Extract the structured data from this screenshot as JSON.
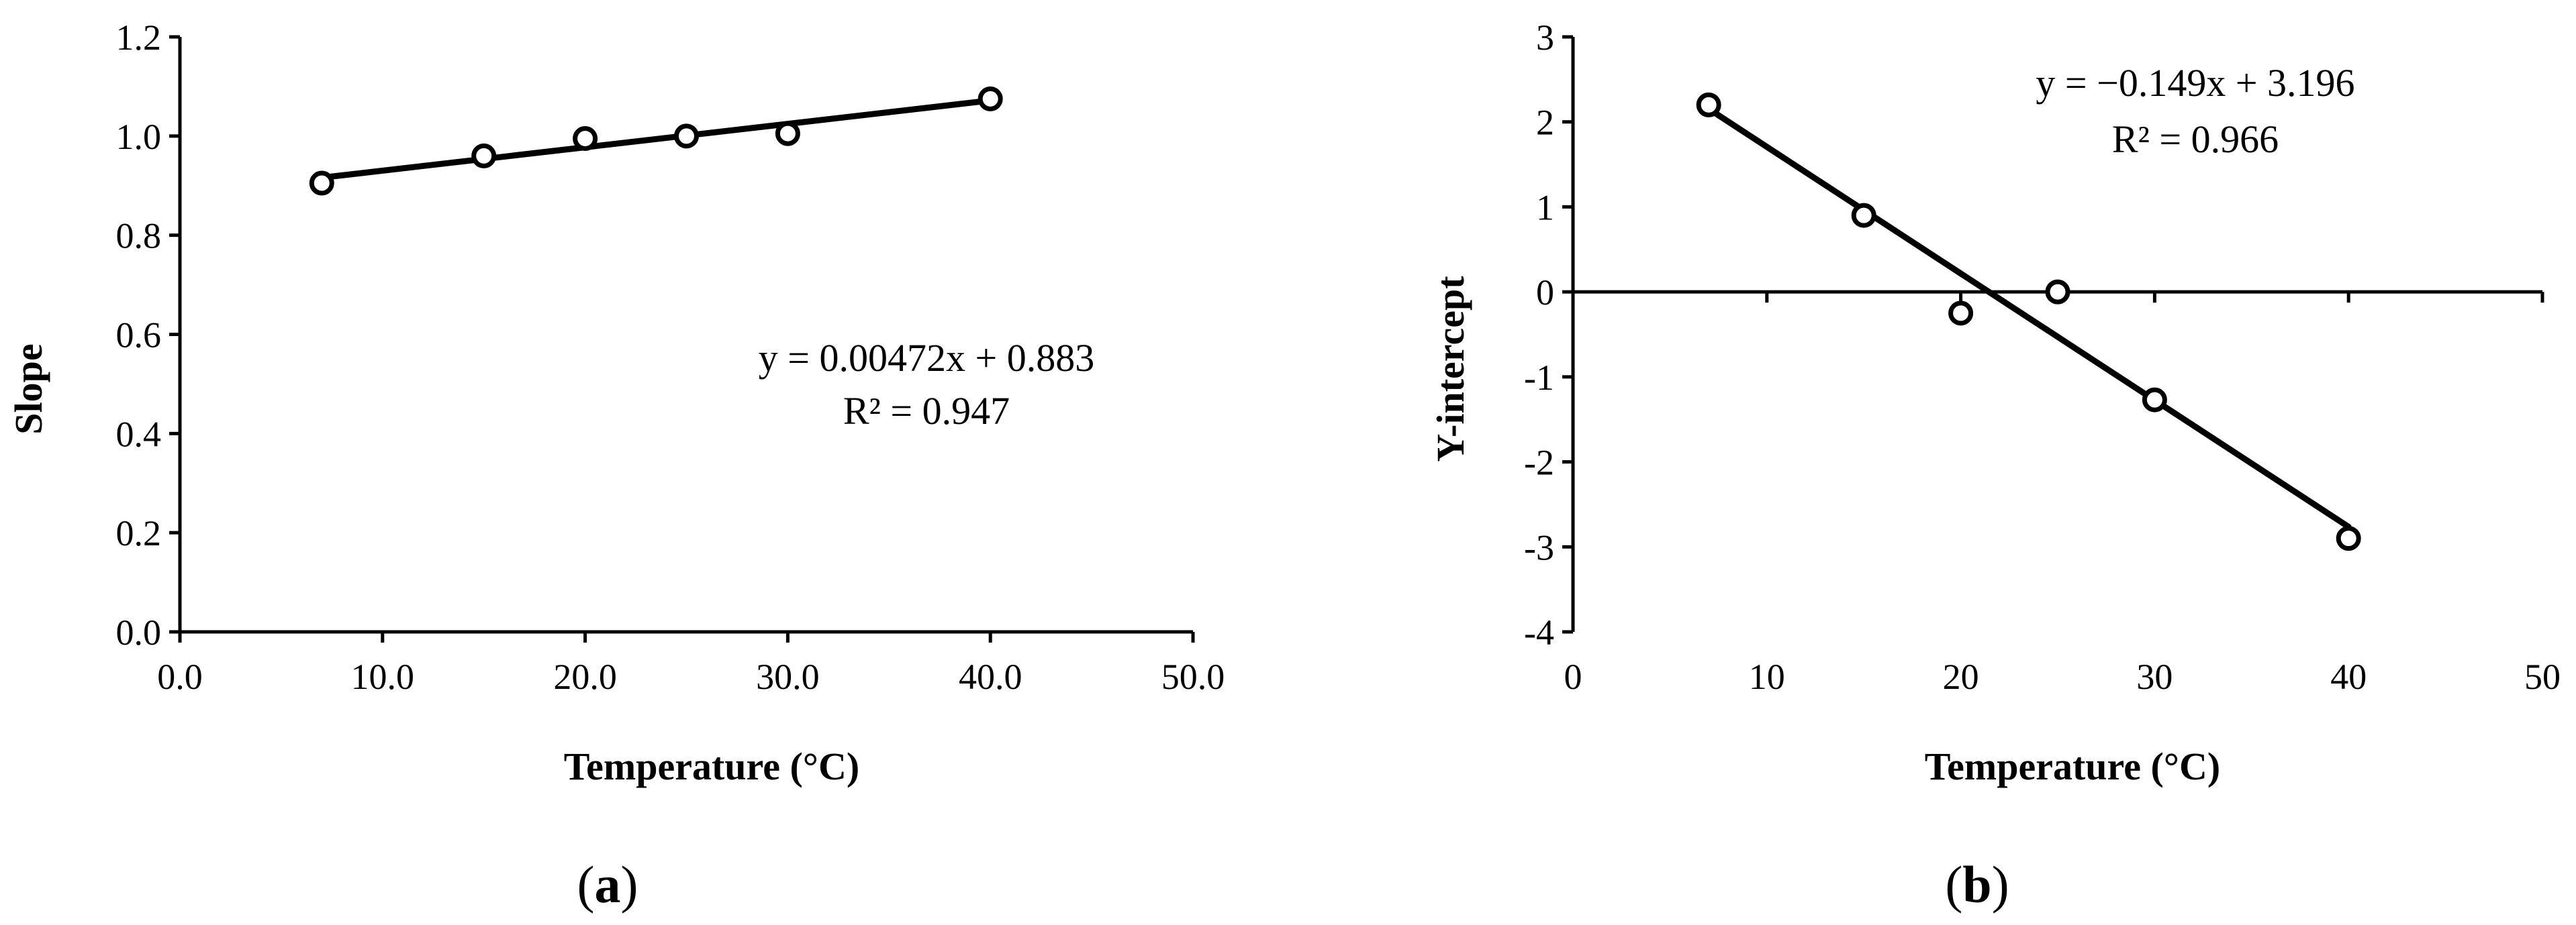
{
  "chart_data": [
    {
      "type": "scatter",
      "panel_label": "a",
      "xlabel": "Temperature (°C)",
      "ylabel": "Slope",
      "xlim": [
        0,
        50
      ],
      "ylim": [
        0,
        1.2
      ],
      "x_ticks": [
        "0.0",
        "10.0",
        "20.0",
        "30.0",
        "40.0",
        "50.0"
      ],
      "y_ticks": [
        "0.0",
        "0.2",
        "0.4",
        "0.6",
        "0.8",
        "1.0",
        "1.2"
      ],
      "grid": false,
      "series": [
        {
          "x": [
            7,
            15,
            20,
            25,
            30,
            40
          ],
          "y": [
            0.905,
            0.96,
            0.995,
            1.0,
            1.005,
            1.075
          ]
        }
      ],
      "trendline": {
        "slope": 0.00472,
        "intercept": 0.883,
        "x_range": [
          7,
          40
        ]
      },
      "equation": "y = 0.00472x + 0.883",
      "r_squared": "R² = 0.947"
    },
    {
      "type": "scatter",
      "panel_label": "b",
      "xlabel": "Temperature (°C)",
      "ylabel": "Y-intercept",
      "xlim": [
        0,
        50
      ],
      "ylim": [
        -4,
        3
      ],
      "x_ticks": [
        "0",
        "10",
        "20",
        "30",
        "40",
        "50"
      ],
      "y_ticks": [
        "-4",
        "-3",
        "-2",
        "-1",
        "0",
        "1",
        "2",
        "3"
      ],
      "grid": false,
      "series": [
        {
          "x": [
            7,
            15,
            20,
            25,
            30,
            40
          ],
          "y": [
            2.2,
            0.9,
            -0.25,
            0.0,
            -1.27,
            -2.9
          ]
        }
      ],
      "trendline": {
        "slope": -0.149,
        "intercept": 3.196,
        "x_range": [
          7,
          40
        ]
      },
      "equation": "y = −0.149x + 3.196",
      "r_squared": "R² = 0.966"
    }
  ]
}
